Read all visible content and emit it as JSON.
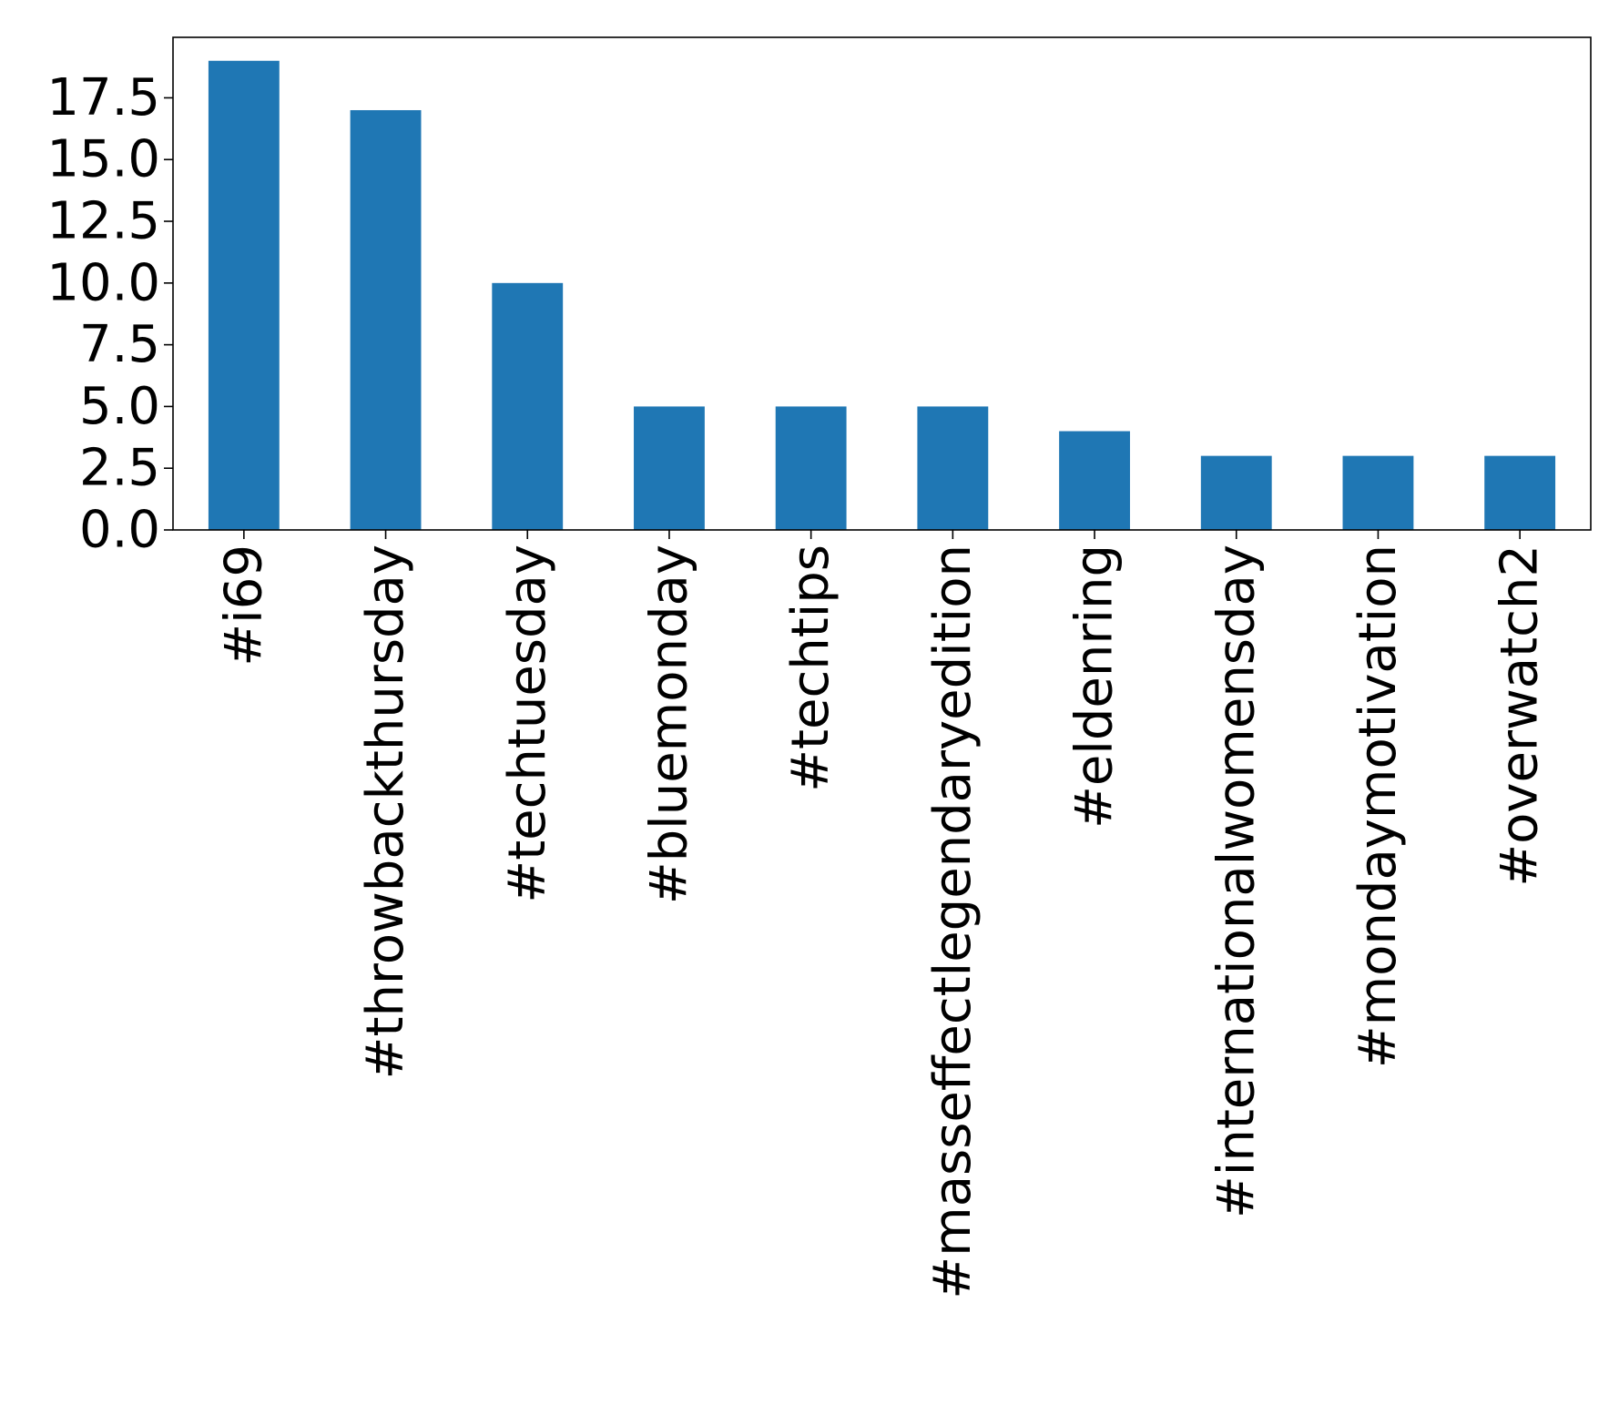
{
  "chart_data": {
    "type": "bar",
    "title": "",
    "xlabel": "",
    "ylabel": "",
    "categories": [
      "#i69",
      "#throwbackthursday",
      "#techtuesday",
      "#bluemonday",
      "#techtips",
      "#masseffectlegendaryedition",
      "#eldenring",
      "#internationalwomensday",
      "#mondaymotivation",
      "#overwatch2"
    ],
    "values": [
      19,
      17,
      10,
      5,
      5,
      5,
      4,
      3,
      3,
      3
    ],
    "ylim": [
      0,
      19.95
    ],
    "yticks": [
      0.0,
      2.5,
      5.0,
      7.5,
      10.0,
      12.5,
      15.0,
      17.5
    ],
    "ytick_labels": [
      "0.0",
      "2.5",
      "5.0",
      "7.5",
      "10.0",
      "12.5",
      "15.0",
      "17.5"
    ],
    "grid": false,
    "legend": "none",
    "colors": {
      "bar": "#1f77b4",
      "axis": "#000000"
    }
  }
}
